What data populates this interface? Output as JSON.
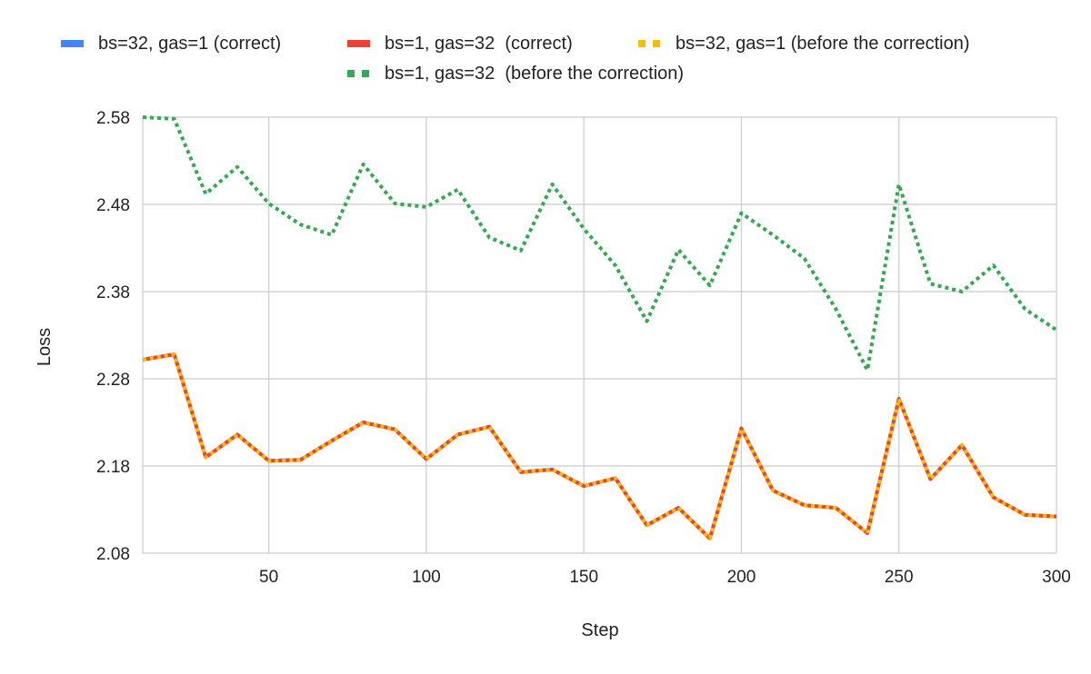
{
  "chart_data": {
    "type": "line",
    "xlabel": "Step",
    "ylabel": "Loss",
    "x": [
      10,
      20,
      30,
      40,
      50,
      60,
      70,
      80,
      90,
      100,
      110,
      120,
      130,
      140,
      150,
      160,
      170,
      180,
      190,
      200,
      210,
      220,
      230,
      240,
      250,
      260,
      270,
      280,
      290,
      300
    ],
    "xlim": [
      10,
      300
    ],
    "ylim": [
      2.08,
      2.58
    ],
    "x_ticks": [
      "50",
      "100",
      "150",
      "200",
      "250",
      "300"
    ],
    "y_ticks": [
      "2.08",
      "2.18",
      "2.28",
      "2.38",
      "2.48",
      "2.58"
    ],
    "grid": true,
    "legend_position": "top",
    "series": [
      {
        "name": "bs=32, gas=1 (correct)",
        "color": "#4285F4",
        "style": "solid",
        "values": [
          2.302,
          2.308,
          2.19,
          2.216,
          2.186,
          2.187,
          2.209,
          2.23,
          2.222,
          2.188,
          2.216,
          2.225,
          2.173,
          2.176,
          2.157,
          2.166,
          2.112,
          2.132,
          2.097,
          2.223,
          2.152,
          2.135,
          2.132,
          2.103,
          2.257,
          2.165,
          2.204,
          2.144,
          2.124,
          2.122
        ]
      },
      {
        "name": "bs=1, gas=32  (correct)",
        "color": "#EA4335",
        "style": "solid",
        "values": [
          2.302,
          2.308,
          2.19,
          2.216,
          2.186,
          2.187,
          2.209,
          2.23,
          2.222,
          2.188,
          2.216,
          2.225,
          2.173,
          2.176,
          2.157,
          2.166,
          2.112,
          2.132,
          2.097,
          2.223,
          2.152,
          2.135,
          2.132,
          2.103,
          2.257,
          2.165,
          2.204,
          2.144,
          2.124,
          2.122
        ]
      },
      {
        "name": "bs=32, gas=1 (before the correction)",
        "color": "#FBBC04",
        "style": "dotted",
        "values": [
          2.302,
          2.308,
          2.19,
          2.216,
          2.186,
          2.187,
          2.209,
          2.23,
          2.222,
          2.188,
          2.216,
          2.225,
          2.173,
          2.176,
          2.157,
          2.166,
          2.112,
          2.132,
          2.097,
          2.223,
          2.152,
          2.135,
          2.132,
          2.103,
          2.257,
          2.165,
          2.204,
          2.144,
          2.124,
          2.122
        ]
      },
      {
        "name": "bs=1, gas=32  (before the correction)",
        "color": "#34A853",
        "style": "dotted",
        "values": [
          2.58,
          2.578,
          2.492,
          2.523,
          2.481,
          2.457,
          2.445,
          2.526,
          2.481,
          2.477,
          2.497,
          2.442,
          2.427,
          2.503,
          2.452,
          2.41,
          2.346,
          2.428,
          2.387,
          2.47,
          2.445,
          2.418,
          2.36,
          2.29,
          2.503,
          2.389,
          2.38,
          2.41,
          2.36,
          2.336
        ]
      }
    ]
  }
}
